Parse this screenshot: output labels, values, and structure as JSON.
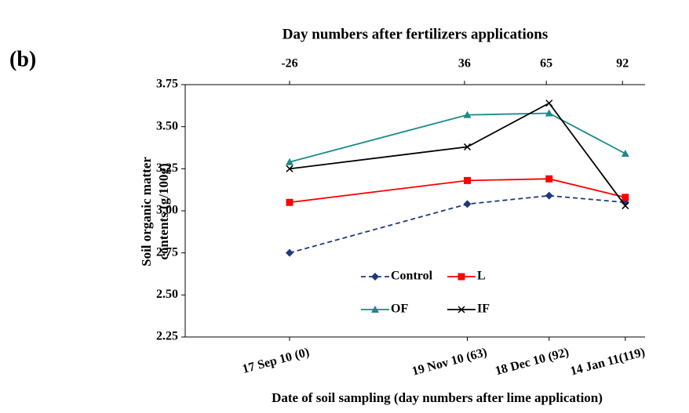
{
  "chart_data": {
    "type": "line",
    "panel_label": "(b)",
    "x2_title": "Day numbers after fertilizers applications",
    "xlabel": "Date of soil sampling (day numbers after lime application)",
    "ylabel": [
      "Soil organic matter",
      "contents  (g/100g)"
    ],
    "x": [
      0,
      63,
      92,
      119
    ],
    "xlim": [
      -37,
      126
    ],
    "xticks": [
      {
        "value": 0,
        "label": "17 Sep  10 (0)"
      },
      {
        "value": 63,
        "label": "19 Nov 10 (63)"
      },
      {
        "value": 92,
        "label": "18 Dec  10 (92)"
      },
      {
        "value": 119,
        "label": "14 Jan 11(119)"
      }
    ],
    "x2lim": [
      -63,
      100
    ],
    "x2ticks": [
      -26,
      36,
      65,
      92
    ],
    "ylim": [
      2.25,
      3.75
    ],
    "yticks": [
      {
        "value": 2.25,
        "label": "2.25"
      },
      {
        "value": 2.5,
        "label": "2.50"
      },
      {
        "value": 2.75,
        "label": "2.75"
      },
      {
        "value": 3.0,
        "label": "3.00"
      },
      {
        "value": 3.25,
        "label": "3.25"
      },
      {
        "value": 3.5,
        "label": "3.50"
      },
      {
        "value": 3.75,
        "label": "3.75"
      }
    ],
    "grid": false,
    "legend": "lower center",
    "series": [
      {
        "name": "Control",
        "color": "#1f3a7a",
        "marker": "diamond",
        "dashed": true,
        "values": [
          2.75,
          3.04,
          3.09,
          3.05
        ]
      },
      {
        "name": "L",
        "color": "#ff0000",
        "marker": "square",
        "dashed": false,
        "values": [
          3.05,
          3.18,
          3.19,
          3.08
        ]
      },
      {
        "name": "OF",
        "color": "#1a8a8a",
        "marker": "triangle",
        "dashed": false,
        "values": [
          3.29,
          3.57,
          3.58,
          3.34
        ]
      },
      {
        "name": "IF",
        "color": "#000000",
        "marker": "x",
        "dashed": false,
        "values": [
          3.25,
          3.38,
          3.64,
          3.03
        ]
      }
    ]
  }
}
